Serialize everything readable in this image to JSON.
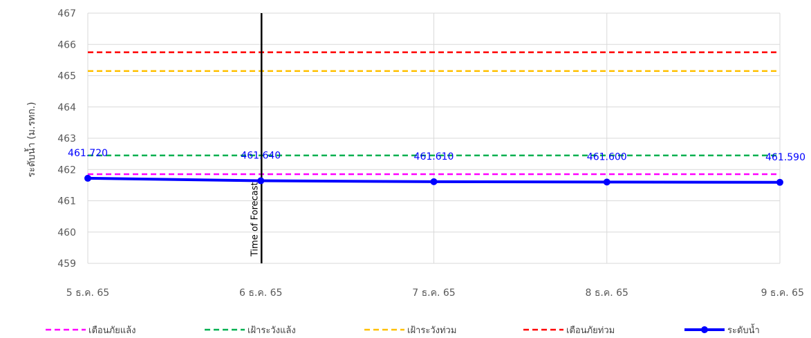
{
  "chart_data": {
    "type": "line",
    "ylabel": "ระดับน้ำ (ม.รทก.)",
    "xlabel": "",
    "ylim": [
      459,
      467
    ],
    "y_ticks": [
      "459",
      "460",
      "461",
      "462",
      "463",
      "464",
      "465",
      "466",
      "467"
    ],
    "categories": [
      "5 ธ.ค. 65",
      "6 ธ.ค. 65",
      "7 ธ.ค. 65",
      "8 ธ.ค. 65",
      "9 ธ.ค. 65"
    ],
    "grid": true,
    "legend_position": "bottom",
    "series": [
      {
        "name": "เตือนภัยแล้ง",
        "style": "dashed",
        "color": "#ff00ff",
        "values": [
          461.85,
          461.85,
          461.85,
          461.85,
          461.85
        ]
      },
      {
        "name": "เฝ้าระวังแล้ง",
        "style": "dashed",
        "color": "#00b050",
        "values": [
          462.45,
          462.45,
          462.45,
          462.45,
          462.45
        ]
      },
      {
        "name": "เฝ้าระวังท่วม",
        "style": "dashed",
        "color": "#ffc000",
        "values": [
          465.15,
          465.15,
          465.15,
          465.15,
          465.15
        ]
      },
      {
        "name": "เตือนภัยท่วม",
        "style": "dashed",
        "color": "#ff0000",
        "values": [
          465.75,
          465.75,
          465.75,
          465.75,
          465.75
        ]
      },
      {
        "name": "ระดับน้ำ",
        "style": "solid-markers",
        "color": "#0000ff",
        "values": [
          461.72,
          461.64,
          461.61,
          461.6,
          461.59
        ]
      }
    ],
    "data_labels": [
      "461.720",
      "461.640",
      "461.610",
      "461.600",
      "461.590"
    ],
    "annotations": [
      {
        "text": "Time of Forecast",
        "at_category": "6 ธ.ค. 65",
        "color": "#000000"
      }
    ]
  }
}
